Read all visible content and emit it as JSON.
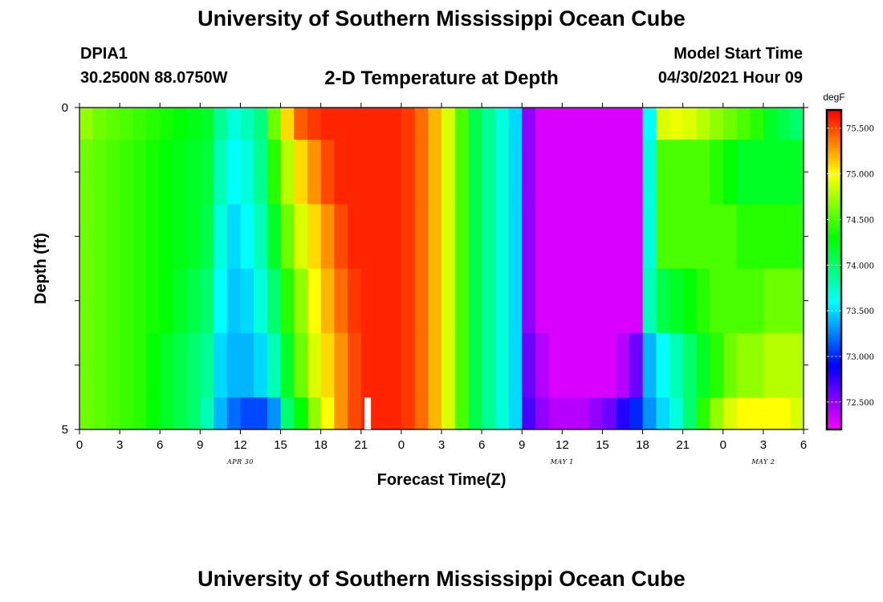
{
  "header": {
    "title": "University of Southern Mississippi Ocean Cube",
    "station_id": "DPIA1",
    "station_position": "30.2500N  88.0750W",
    "plot_title": "2-D Temperature at Depth",
    "model_start_label": "Model Start Time",
    "model_start_value": "04/30/2021 Hour 09"
  },
  "footer": {
    "title": "University of Southern Mississippi Ocean Cube"
  },
  "chart_data": {
    "type": "heatmap",
    "title": "2-D Temperature at Depth",
    "xlabel": "Forecast Time(Z)",
    "ylabel": "Depth (ft)",
    "x_tick_labels": [
      "0",
      "3",
      "6",
      "9",
      "12",
      "15",
      "18",
      "21",
      "0",
      "3",
      "6",
      "9",
      "12",
      "15",
      "18",
      "21",
      "0",
      "3",
      "6"
    ],
    "date_labels": [
      {
        "text": "APR 30",
        "hour_index": 12
      },
      {
        "text": "MAY 1",
        "hour_index": 36
      },
      {
        "text": "MAY 2",
        "hour_index": 51
      }
    ],
    "y_tick_labels": [
      "0",
      "5"
    ],
    "ylim": [
      0,
      5
    ],
    "xlim_hours": [
      0,
      54
    ],
    "depth_layers": [
      0.5,
      1.5,
      2.5,
      3.5,
      4.5,
      5.0
    ],
    "colorbar": {
      "unit": "degF",
      "min": 72.2,
      "max": 75.7,
      "tick_labels": [
        "72.500",
        "73.000",
        "73.500",
        "74.000",
        "74.500",
        "75.000",
        "75.500"
      ],
      "tick_values": [
        72.5,
        73.0,
        73.5,
        74.0,
        74.5,
        75.0,
        75.5
      ]
    },
    "current_time_marker_hour": 21.5,
    "value_matrix_degF": [
      {
        "depth_row": 0,
        "values": [
          74.7,
          74.6,
          74.55,
          74.5,
          74.45,
          74.4,
          74.35,
          74.3,
          74.25,
          74.2,
          73.9,
          73.7,
          73.8,
          73.95,
          74.6,
          75.1,
          75.45,
          75.55,
          75.6,
          75.6,
          75.6,
          75.6,
          75.6,
          75.6,
          75.55,
          75.4,
          75.2,
          74.9,
          74.5,
          74.1,
          73.9,
          73.7,
          73.5,
          72.5,
          72.3,
          72.3,
          72.3,
          72.3,
          72.3,
          72.3,
          72.3,
          72.3,
          73.6,
          74.9,
          74.95,
          74.9,
          74.8,
          74.7,
          74.6,
          74.5,
          74.4,
          74.2,
          74.1,
          74.0
        ]
      },
      {
        "depth_row": 1,
        "values": [
          74.6,
          74.55,
          74.5,
          74.45,
          74.4,
          74.35,
          74.3,
          74.25,
          74.2,
          74.15,
          73.8,
          73.6,
          73.7,
          73.9,
          74.4,
          74.8,
          75.1,
          75.3,
          75.5,
          75.6,
          75.6,
          75.6,
          75.6,
          75.6,
          75.55,
          75.4,
          75.2,
          74.9,
          74.5,
          74.1,
          73.9,
          73.7,
          73.5,
          72.5,
          72.3,
          72.3,
          72.3,
          72.3,
          72.3,
          72.3,
          72.3,
          72.3,
          73.7,
          74.5,
          74.5,
          74.5,
          74.5,
          74.4,
          74.3,
          74.2,
          74.2,
          74.2,
          74.2,
          74.2
        ]
      },
      {
        "depth_row": 2,
        "values": [
          74.6,
          74.55,
          74.5,
          74.45,
          74.4,
          74.35,
          74.3,
          74.25,
          74.2,
          74.1,
          73.7,
          73.5,
          73.6,
          73.8,
          74.2,
          74.6,
          74.9,
          75.1,
          75.3,
          75.5,
          75.6,
          75.6,
          75.6,
          75.6,
          75.55,
          75.4,
          75.2,
          74.9,
          74.5,
          74.1,
          73.9,
          73.7,
          73.5,
          72.5,
          72.3,
          72.3,
          72.3,
          72.3,
          72.3,
          72.3,
          72.3,
          72.3,
          73.7,
          74.5,
          74.5,
          74.5,
          74.5,
          74.5,
          74.5,
          74.4,
          74.4,
          74.4,
          74.4,
          74.4
        ]
      },
      {
        "depth_row": 3,
        "values": [
          74.6,
          74.55,
          74.5,
          74.45,
          74.4,
          74.35,
          74.3,
          74.2,
          74.1,
          74.0,
          73.6,
          73.45,
          73.5,
          73.7,
          74.0,
          74.4,
          74.7,
          75.0,
          75.2,
          75.4,
          75.55,
          75.6,
          75.6,
          75.6,
          75.55,
          75.4,
          75.2,
          74.9,
          74.5,
          74.1,
          73.9,
          73.7,
          73.5,
          72.5,
          72.3,
          72.3,
          72.3,
          72.3,
          72.3,
          72.3,
          72.3,
          72.3,
          73.8,
          74.1,
          74.2,
          74.3,
          74.4,
          74.5,
          74.5,
          74.5,
          74.5,
          74.6,
          74.6,
          74.6
        ]
      },
      {
        "depth_row": 4,
        "values": [
          74.6,
          74.55,
          74.5,
          74.45,
          74.4,
          74.3,
          74.2,
          74.1,
          74.0,
          73.9,
          73.5,
          73.4,
          73.4,
          73.5,
          73.8,
          74.2,
          74.6,
          74.9,
          75.1,
          75.3,
          75.5,
          75.6,
          75.6,
          75.6,
          75.55,
          75.4,
          75.2,
          74.9,
          74.5,
          74.1,
          73.9,
          73.7,
          73.5,
          72.6,
          72.4,
          72.3,
          72.3,
          72.3,
          72.3,
          72.3,
          72.4,
          72.6,
          73.4,
          73.6,
          73.8,
          74.0,
          74.2,
          74.4,
          74.6,
          74.7,
          74.7,
          74.8,
          74.8,
          74.8
        ]
      },
      {
        "depth_row": 5,
        "values": [
          74.6,
          74.55,
          74.5,
          74.45,
          74.4,
          74.3,
          74.2,
          74.1,
          74.0,
          73.8,
          73.4,
          73.2,
          73.1,
          73.1,
          73.3,
          74.0,
          74.3,
          74.7,
          75.0,
          75.3,
          75.5,
          75.6,
          75.6,
          75.6,
          75.55,
          75.4,
          75.2,
          74.9,
          74.5,
          74.1,
          73.9,
          73.7,
          73.5,
          72.7,
          72.5,
          72.4,
          72.4,
          72.4,
          72.5,
          72.6,
          72.8,
          73.0,
          73.3,
          73.5,
          73.7,
          74.0,
          74.4,
          74.7,
          74.9,
          75.0,
          75.0,
          75.0,
          75.0,
          74.9
        ]
      }
    ]
  }
}
